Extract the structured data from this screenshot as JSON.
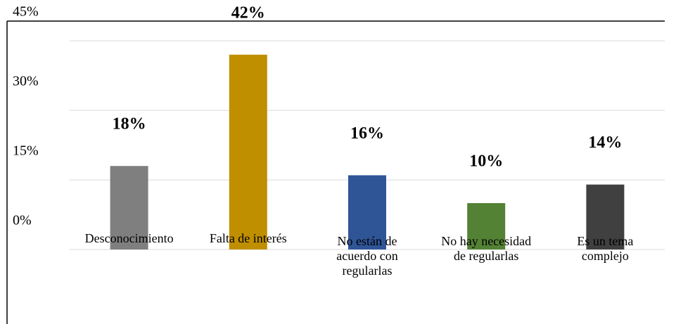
{
  "chart_data": {
    "type": "bar",
    "categories": [
      "Desconocimiento",
      "Falta de interés",
      "No están de acuerdo con regularlas",
      "No hay necesidad de regularlas",
      "Es un tema complejo"
    ],
    "values": [
      18,
      42,
      16,
      10,
      14
    ],
    "value_labels": [
      "18%",
      "42%",
      "16%",
      "10%",
      "14%"
    ],
    "colors": [
      "#7f7f7f",
      "#bf8f00",
      "#2f5597",
      "#548235",
      "#404040"
    ],
    "ylim": [
      0,
      45
    ],
    "yticks": [
      {
        "value": 0,
        "label": "0%"
      },
      {
        "value": 15,
        "label": "15%"
      },
      {
        "value": 30,
        "label": "30%"
      },
      {
        "value": 45,
        "label": "45%"
      }
    ],
    "grid": true
  }
}
